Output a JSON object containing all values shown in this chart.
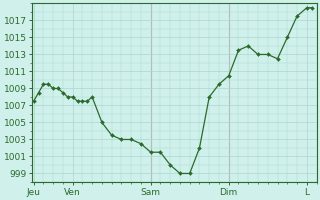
{
  "background_color": "#cff0eb",
  "plot_bg_color": "#cff0eb",
  "line_color": "#2d6a2d",
  "marker_color": "#2d6a2d",
  "grid_major_color": "#a8d8d0",
  "grid_minor_color": "#a8d8d0",
  "vline_color": "#cc8888",
  "axis_color": "#2d6a2d",
  "spine_color": "#2d6a2d",
  "ylim": [
    998.0,
    1019.0
  ],
  "yticks": [
    999,
    1001,
    1003,
    1005,
    1007,
    1009,
    1011,
    1013,
    1015,
    1017
  ],
  "xtick_labels": [
    "Jeu",
    "Ven",
    "Sam",
    "Dim",
    "L"
  ],
  "xtick_positions": [
    0,
    24,
    72,
    120,
    168
  ],
  "xlim": [
    -1,
    174
  ],
  "x_values": [
    0,
    3,
    6,
    9,
    12,
    15,
    18,
    21,
    24,
    27,
    30,
    33,
    36,
    42,
    48,
    54,
    60,
    66,
    72,
    78,
    84,
    90,
    96,
    102,
    108,
    114,
    120,
    126,
    132,
    138,
    144,
    150,
    156,
    162,
    168,
    171
  ],
  "y_values": [
    1007.5,
    1008.5,
    1009.5,
    1009.5,
    1009.0,
    1009.0,
    1008.5,
    1008.0,
    1008.0,
    1007.5,
    1007.5,
    1007.5,
    1008.0,
    1005.0,
    1003.5,
    1003.0,
    1003.0,
    1002.5,
    1001.5,
    1001.5,
    1000.0,
    999.0,
    999.0,
    1002.0,
    1008.0,
    1009.5,
    1010.5,
    1013.5,
    1014.0,
    1013.0,
    1013.0,
    1012.5,
    1015.0,
    1017.5,
    1018.5,
    1018.5
  ],
  "vline_positions": [
    72,
    120
  ],
  "xlabel_fontsize": 6.5,
  "ylabel_fontsize": 6.5,
  "figsize": [
    3.2,
    2.0
  ],
  "dpi": 100
}
